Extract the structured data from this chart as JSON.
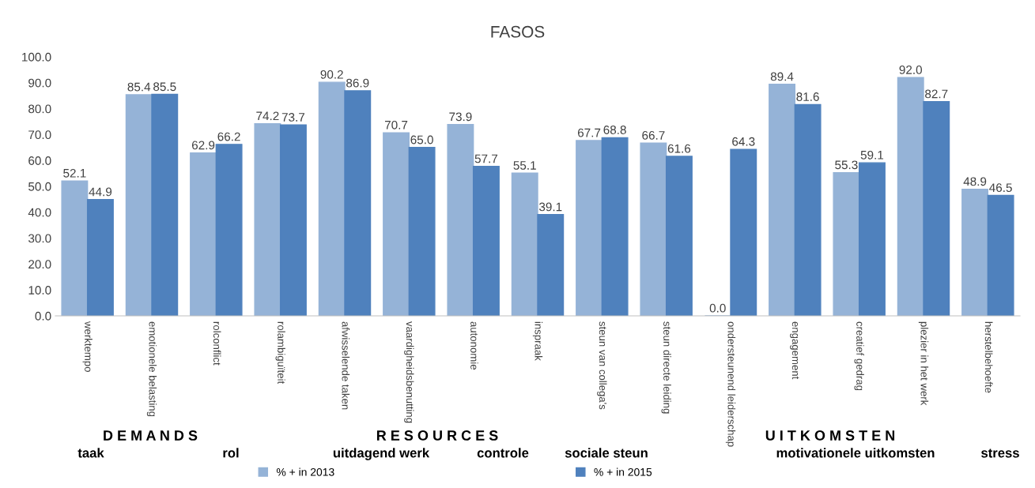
{
  "chart_data": {
    "type": "bar",
    "title": "FASOS",
    "categories": [
      "werktempo",
      "emotionele belasting",
      "rolconflict",
      "rolambiguïteit",
      "afwisselende taken",
      "vaardigheidsbenutting",
      "autonomie",
      "inspraak",
      "steun van collega's",
      "steun directe leiding",
      "ondersteunend leiderschap",
      "engagement",
      "creatief gedrag",
      "plezier in het werk",
      "herstelbehoefte"
    ],
    "series": [
      {
        "name": "% + in 2013",
        "color": "#95b3d7",
        "values": [
          52.1,
          85.4,
          62.9,
          74.2,
          90.2,
          70.7,
          73.9,
          55.1,
          67.7,
          66.7,
          0,
          89.4,
          55.3,
          92.0,
          48.9
        ],
        "value_labels": [
          "52.1",
          "85.4",
          "62.9",
          "74.2",
          "90.2",
          "70.7",
          "73.9",
          "55.1",
          "67.7",
          "66.7",
          "0.0",
          "89.4",
          "55.3",
          "92.0",
          "48.9"
        ]
      },
      {
        "name": "% + in 2015",
        "color": "#4f81bd",
        "values": [
          44.9,
          85.5,
          66.2,
          73.7,
          86.9,
          65.0,
          57.7,
          39.1,
          68.8,
          61.6,
          64.3,
          81.6,
          59.1,
          82.7,
          46.5
        ],
        "value_labels": [
          "44.9",
          "85.5",
          "66.2",
          "73.7",
          "86.9",
          "65.0",
          "57.7",
          "39.1",
          "68.8",
          "61.6",
          "64.3",
          "81.6",
          "59.1",
          "82.7",
          "46.5"
        ]
      }
    ],
    "ylim": [
      0,
      100
    ],
    "yticks": [
      {
        "value": 0,
        "label": "0.0"
      },
      {
        "value": 10,
        "label": "10.0"
      },
      {
        "value": 20,
        "label": "20.0"
      },
      {
        "value": 30,
        "label": "30.0"
      },
      {
        "value": 40,
        "label": "40.0"
      },
      {
        "value": 50,
        "label": "50.0"
      },
      {
        "value": 60,
        "label": "60.0"
      },
      {
        "value": 70,
        "label": "70.0"
      },
      {
        "value": 80,
        "label": "80.0"
      },
      {
        "value": 90,
        "label": "90.0"
      },
      {
        "value": 100,
        "label": "100.0"
      }
    ],
    "grid": false,
    "legend": "bottom",
    "annotations": [
      "D E M A N D S",
      "R E S O U R C E S",
      "U I T K O M S T E N",
      "taak",
      "rol",
      "uitdagend werk",
      "controle",
      "sociale steun",
      "motivationele uitkomsten",
      "stress"
    ]
  }
}
